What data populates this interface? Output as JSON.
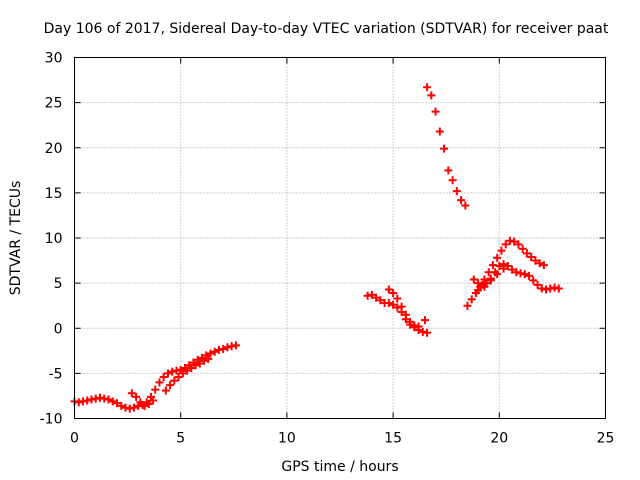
{
  "chart_data": {
    "type": "scatter",
    "title": "Day 106 of 2017, Sidereal Day-to-day VTEC variation (SDTVAR) for receiver paat",
    "xlabel": "GPS time / hours",
    "ylabel": "SDTVAR / TECUs",
    "xlim": [
      0,
      25
    ],
    "ylim": [
      -10,
      30
    ],
    "xticks": [
      0,
      5,
      10,
      15,
      20,
      25
    ],
    "yticks": [
      -10,
      -5,
      0,
      5,
      10,
      15,
      20,
      25,
      30
    ],
    "grid": true,
    "marker": "+",
    "color": "#ff0000",
    "series": [
      {
        "x": [
          0.0,
          0.2,
          0.4,
          0.6,
          0.8,
          1.0,
          1.2,
          1.4,
          1.6,
          1.8,
          2.0,
          2.2,
          2.4,
          2.6,
          2.8,
          3.0,
          3.2,
          3.4,
          3.6,
          3.8,
          4.0,
          4.2,
          4.4,
          4.6,
          4.8,
          5.0,
          5.2,
          5.4,
          5.6,
          5.8,
          6.0,
          6.2,
          6.4,
          6.6,
          6.8,
          7.0,
          7.2,
          7.4,
          7.6
        ],
        "y": [
          -8.1,
          -8.2,
          -8.1,
          -8.0,
          -7.9,
          -7.8,
          -7.7,
          -7.8,
          -7.9,
          -8.1,
          -8.3,
          -8.6,
          -8.8,
          -8.9,
          -8.8,
          -8.6,
          -8.5,
          -8.2,
          -7.6,
          -6.8,
          -6.0,
          -5.4,
          -5.0,
          -4.8,
          -4.7,
          -4.6,
          -4.4,
          -4.1,
          -3.8,
          -3.5,
          -3.3,
          -3.0,
          -2.8,
          -2.6,
          -2.4,
          -2.3,
          -2.1,
          -2.0,
          -1.9
        ]
      },
      {
        "x": [
          2.7,
          2.9,
          3.1,
          3.3,
          3.5,
          3.7
        ],
        "y": [
          -7.2,
          -7.6,
          -8.2,
          -8.6,
          -8.4,
          -8.0
        ]
      },
      {
        "x": [
          4.3,
          4.5,
          4.7,
          4.9,
          5.1,
          5.3,
          5.5,
          5.7,
          5.9,
          6.1,
          6.3
        ],
        "y": [
          -6.9,
          -6.3,
          -5.8,
          -5.4,
          -5.0,
          -4.7,
          -4.4,
          -4.1,
          -3.9,
          -3.6,
          -3.4
        ]
      },
      {
        "x": [
          13.8,
          14.0,
          14.2,
          14.4,
          14.6,
          14.8,
          15.0,
          15.2,
          15.4,
          15.6,
          15.8,
          16.0,
          16.2,
          16.4,
          16.6
        ],
        "y": [
          3.6,
          3.7,
          3.4,
          3.1,
          2.8,
          2.8,
          2.6,
          2.3,
          1.8,
          1.0,
          0.4,
          0.1,
          -0.2,
          -0.4,
          -0.5
        ]
      },
      {
        "x": [
          14.8,
          15.0,
          15.2,
          15.4,
          15.6,
          15.8,
          16.0,
          16.2,
          16.5
        ],
        "y": [
          4.3,
          3.9,
          3.3,
          2.4,
          1.5,
          0.7,
          0.3,
          0.2,
          0.9
        ]
      },
      {
        "x": [
          16.6,
          16.8,
          17.0,
          17.2,
          17.4,
          17.6,
          17.8,
          18.0,
          18.2,
          18.4
        ],
        "y": [
          26.7,
          25.8,
          24.0,
          21.8,
          19.9,
          17.5,
          16.4,
          15.2,
          14.2,
          13.6
        ]
      },
      {
        "x": [
          18.5,
          18.7,
          18.9,
          19.1,
          19.3,
          19.5,
          19.7,
          19.9,
          20.1,
          20.3,
          20.5,
          20.7,
          20.9,
          21.1,
          21.3,
          21.5,
          21.7,
          21.9,
          22.1
        ],
        "y": [
          2.5,
          3.2,
          3.9,
          4.6,
          5.4,
          6.2,
          7.0,
          7.8,
          8.6,
          9.3,
          9.7,
          9.6,
          9.3,
          8.8,
          8.3,
          7.9,
          7.5,
          7.2,
          7.0
        ]
      },
      {
        "x": [
          18.8,
          19.0,
          19.2,
          19.4,
          19.6,
          19.8,
          20.0,
          20.2,
          20.4,
          20.6,
          20.8,
          21.0,
          21.2,
          21.4,
          21.6,
          21.8,
          22.0,
          22.2,
          22.4,
          22.6,
          22.8
        ],
        "y": [
          5.4,
          5.0,
          4.8,
          5.0,
          5.5,
          6.2,
          6.9,
          7.1,
          6.9,
          6.5,
          6.2,
          6.1,
          6.0,
          5.8,
          5.3,
          4.8,
          4.4,
          4.3,
          4.4,
          4.5,
          4.4
        ]
      },
      {
        "x": [
          19.0,
          19.3,
          19.6,
          19.9,
          20.2,
          20.4
        ],
        "y": [
          4.2,
          4.6,
          5.3,
          6.0,
          6.6,
          6.9
        ]
      }
    ]
  }
}
